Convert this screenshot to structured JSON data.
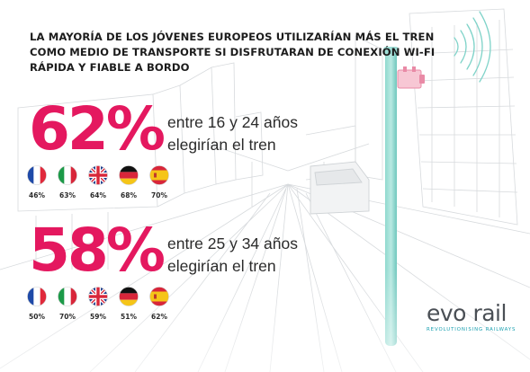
{
  "title_lines": [
    "LA MAYORÍA DE LOS JÓVENES EUROPEOS UTILIZARÍAN MÁS EL TREN",
    "COMO MEDIO DE TRANSPORTE SI DISFRUTARAN DE CONEXIÓN WI-FI",
    "RÁPIDA Y FIABLE A BORDO"
  ],
  "groups": [
    {
      "big_value": "62%",
      "desc_line1": "entre 16 y 24 años",
      "desc_line2": "elegirían el tren",
      "flags": [
        {
          "country": "france-flag-icon",
          "pct": "46%"
        },
        {
          "country": "italy-flag-icon",
          "pct": "63%"
        },
        {
          "country": "uk-flag-icon",
          "pct": "64%"
        },
        {
          "country": "germany-flag-icon",
          "pct": "68%"
        },
        {
          "country": "spain-flag-icon",
          "pct": "70%"
        }
      ]
    },
    {
      "big_value": "58%",
      "desc_line1": "entre 25 y 34 años",
      "desc_line2": "elegirían el tren",
      "flags": [
        {
          "country": "france-flag-icon",
          "pct": "50%"
        },
        {
          "country": "italy-flag-icon",
          "pct": "70%"
        },
        {
          "country": "uk-flag-icon",
          "pct": "59%"
        },
        {
          "country": "germany-flag-icon",
          "pct": "51%"
        },
        {
          "country": "spain-flag-icon",
          "pct": "62%"
        }
      ]
    }
  ],
  "logo": {
    "brand_part1": "evo",
    "brand_part2": "rail",
    "tagline": "REVOLUTIONISING RAILWAYS"
  },
  "colors": {
    "accent_pink": "#e4185f",
    "pole_teal": "#7fd3c9",
    "logo_teal": "#1aa0b0"
  }
}
